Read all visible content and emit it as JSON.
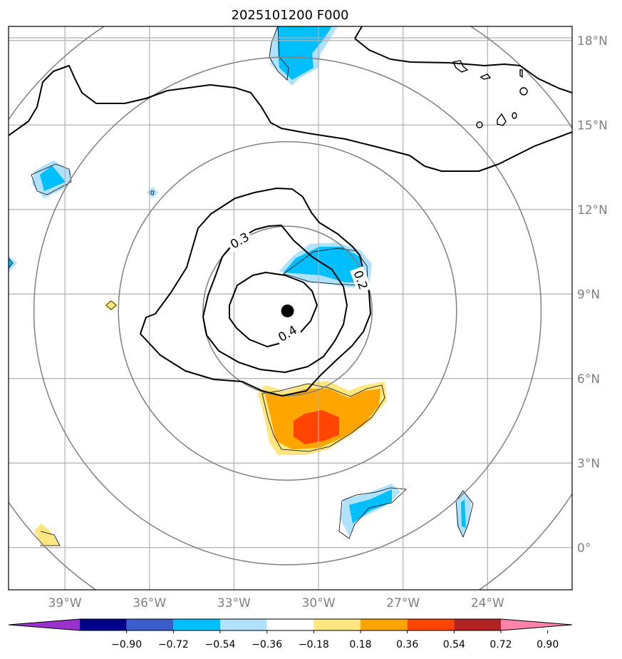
{
  "chart_data": {
    "type": "contour-map",
    "title": "2025101200 F000",
    "lon_range": [
      -41,
      -21
    ],
    "lat_range": [
      -1.5,
      18.5
    ],
    "lon_ticks": [
      {
        "value": -39,
        "label": "39°W"
      },
      {
        "value": -36,
        "label": "36°W"
      },
      {
        "value": -33,
        "label": "33°W"
      },
      {
        "value": -30,
        "label": "30°W"
      },
      {
        "value": -27,
        "label": "27°W"
      },
      {
        "value": -24,
        "label": "24°W"
      }
    ],
    "lat_ticks": [
      {
        "value": 0,
        "label": "0°"
      },
      {
        "value": 3,
        "label": "3°N"
      },
      {
        "value": 6,
        "label": "6°N"
      },
      {
        "value": 9,
        "label": "9°N"
      },
      {
        "value": 12,
        "label": "12°N"
      },
      {
        "value": 15,
        "label": "15°N"
      },
      {
        "value": 18,
        "label": "18°N"
      }
    ],
    "grid": true,
    "center": {
      "lon": -31.1,
      "lat": 8.4
    },
    "range_rings_deg": [
      3,
      6,
      9,
      12
    ],
    "contour_labels": [
      {
        "text": "0.3",
        "lon": -32.8,
        "lat": 10.9,
        "rotate": -30
      },
      {
        "text": "0.4",
        "lon": -31.1,
        "lat": 7.6,
        "rotate": -30
      },
      {
        "text": "0.2",
        "lon": -28.5,
        "lat": 9.5,
        "rotate": 70
      }
    ],
    "colorbar": {
      "levels": [
        "−0.90",
        "−0.72",
        "−0.54",
        "−0.36",
        "−0.18",
        "0.18",
        "0.36",
        "0.54",
        "0.72",
        "0.90"
      ],
      "colors": [
        "#9932cc",
        "#00008b",
        "#3a5fcd",
        "#00bfff",
        "#b0e2ff",
        "#ffffff",
        "#ffe680",
        "#ffa500",
        "#ff4500",
        "#b22222",
        "#ff82ab"
      ],
      "extend": "both"
    },
    "colors": {
      "ring": "#808080",
      "grid": "#b0b0b0",
      "contour": "#000000"
    }
  }
}
